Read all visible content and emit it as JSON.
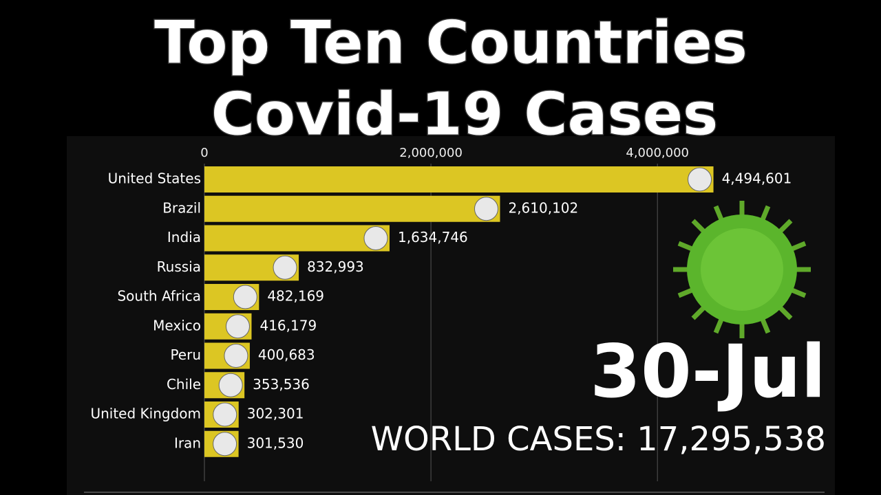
{
  "chart_data": {
    "type": "bar",
    "orientation": "horizontal",
    "title": "Top Ten Countries",
    "subtitle": "Covid-19 Cases",
    "annotations": [
      "30-Jul",
      "WORLD CASES: 17,295,538"
    ],
    "categories": [
      "United States",
      "Brazil",
      "India",
      "Russia",
      "South Africa",
      "Mexico",
      "Peru",
      "Chile",
      "United Kingdom",
      "Iran"
    ],
    "values": [
      4494601,
      2610102,
      1634746,
      832993,
      482169,
      416179,
      400683,
      353536,
      302301,
      301530
    ],
    "value_labels": [
      "4,494,601",
      "2,610,102",
      "1,634,746",
      "832,993",
      "482,169",
      "416,179",
      "400,683",
      "353,536",
      "302,301",
      "301,530"
    ],
    "color": "#dcc623",
    "xlim": [
      0,
      5500000
    ],
    "xticks": [
      0,
      {
        "value": 2000000,
        "label": "2,000,000"
      },
      {
        "value": 4000000,
        "label": "4,000,000"
      }
    ],
    "grid": true
  }
}
